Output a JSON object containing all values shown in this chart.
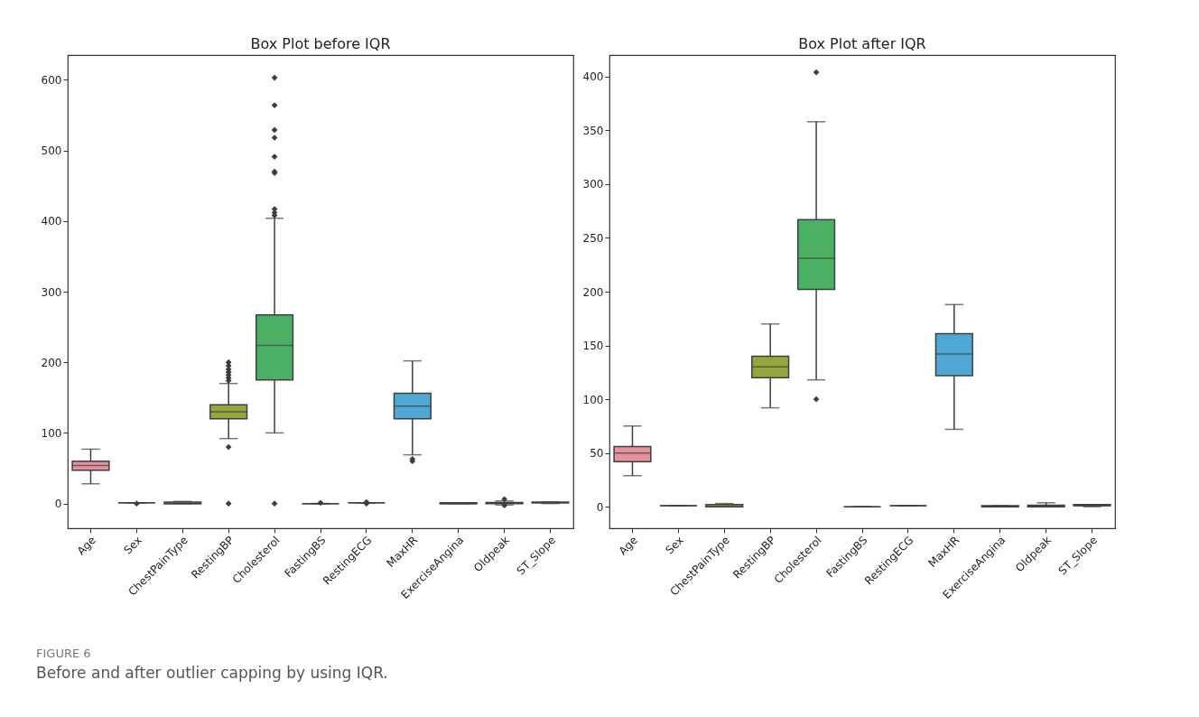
{
  "chart_data": [
    {
      "type": "box",
      "title": "Box Plot before IQR",
      "categories": [
        "Age",
        "Sex",
        "ChestPainType",
        "RestingBP",
        "Cholesterol",
        "FastingBS",
        "RestingECG",
        "MaxHR",
        "ExerciseAngina",
        "Oldpeak",
        "ST_Slope"
      ],
      "colors": [
        "#e8919e",
        "#3f3f3f",
        "#b9a23f",
        "#93a73c",
        "#4bb064",
        "#3f3f3f",
        "#3f3f3f",
        "#4fa8d4",
        "#8f9fe0",
        "#c58fdb",
        "#e08cc4"
      ],
      "boxes": [
        {
          "low": 28,
          "q1": 47,
          "median": 54,
          "q3": 60,
          "high": 77
        },
        {
          "low": 1,
          "q1": 1,
          "median": 1,
          "q3": 1,
          "high": 1,
          "outliers": [
            0
          ]
        },
        {
          "low": 0,
          "q1": 0,
          "median": 0,
          "q3": 2,
          "high": 3
        },
        {
          "low": 92,
          "q1": 120,
          "median": 130,
          "q3": 140,
          "high": 170,
          "outliers": [
            0,
            80,
            174,
            178,
            182,
            186,
            190,
            195,
            200
          ]
        },
        {
          "low": 100,
          "q1": 175,
          "median": 224,
          "q3": 267,
          "high": 404,
          "outliers": [
            0,
            408,
            412,
            417,
            468,
            470,
            491,
            518,
            529,
            564,
            603
          ]
        },
        {
          "low": 0,
          "q1": 0,
          "median": 0,
          "q3": 0,
          "high": 0,
          "outliers": [
            1
          ]
        },
        {
          "low": 1,
          "q1": 1,
          "median": 1,
          "q3": 1,
          "high": 1,
          "outliers": [
            0,
            2
          ]
        },
        {
          "low": 69,
          "q1": 120,
          "median": 138,
          "q3": 156,
          "high": 202,
          "outliers": [
            60,
            63
          ]
        },
        {
          "low": 0,
          "q1": 0,
          "median": 0,
          "q3": 1,
          "high": 1
        },
        {
          "low": -2,
          "q1": 0,
          "median": 0.6,
          "q3": 1.5,
          "high": 3.7,
          "outliers": [
            -2.6,
            6.2
          ]
        },
        {
          "low": 0,
          "q1": 1,
          "median": 1,
          "q3": 2,
          "high": 2
        }
      ],
      "ylim": [
        -35,
        635
      ],
      "yticks": [
        0,
        100,
        200,
        300,
        400,
        500,
        600
      ],
      "grid": false,
      "annotations": [
        "FIGURE 6",
        "Before and after outlier capping by using IQR."
      ]
    },
    {
      "type": "box",
      "title": "Box Plot after IQR",
      "categories": [
        "Age",
        "Sex",
        "ChestPainType",
        "RestingBP",
        "Cholesterol",
        "FastingBS",
        "RestingECG",
        "MaxHR",
        "ExerciseAngina",
        "Oldpeak",
        "ST_Slope"
      ],
      "colors": [
        "#e8919e",
        "#3f3f3f",
        "#b9a23f",
        "#93a73c",
        "#4bb064",
        "#3f3f3f",
        "#3f3f3f",
        "#4fa8d4",
        "#8f9fe0",
        "#c58fdb",
        "#e08cc4"
      ],
      "boxes": [
        {
          "low": 29,
          "q1": 42,
          "median": 50,
          "q3": 56,
          "high": 75
        },
        {
          "low": 1,
          "q1": 1,
          "median": 1,
          "q3": 1,
          "high": 1
        },
        {
          "low": 0,
          "q1": 0,
          "median": 0,
          "q3": 2,
          "high": 3
        },
        {
          "low": 92,
          "q1": 120,
          "median": 130,
          "q3": 140,
          "high": 170
        },
        {
          "low": 118,
          "q1": 202,
          "median": 231,
          "q3": 267,
          "high": 358,
          "outliers": [
            100,
            404
          ]
        },
        {
          "low": 0,
          "q1": 0,
          "median": 0,
          "q3": 0,
          "high": 0
        },
        {
          "low": 1,
          "q1": 1,
          "median": 1,
          "q3": 1,
          "high": 1
        },
        {
          "low": 72,
          "q1": 122,
          "median": 142,
          "q3": 161,
          "high": 188
        },
        {
          "low": 0,
          "q1": 0,
          "median": 0,
          "q3": 1,
          "high": 1
        },
        {
          "low": 0,
          "q1": 0,
          "median": 0.6,
          "q3": 1.5,
          "high": 3.7
        },
        {
          "low": 0,
          "q1": 1,
          "median": 1,
          "q3": 2,
          "high": 2
        }
      ],
      "ylim": [
        -20,
        420
      ],
      "yticks": [
        0,
        50,
        100,
        150,
        200,
        250,
        300,
        350,
        400
      ],
      "grid": false
    }
  ]
}
